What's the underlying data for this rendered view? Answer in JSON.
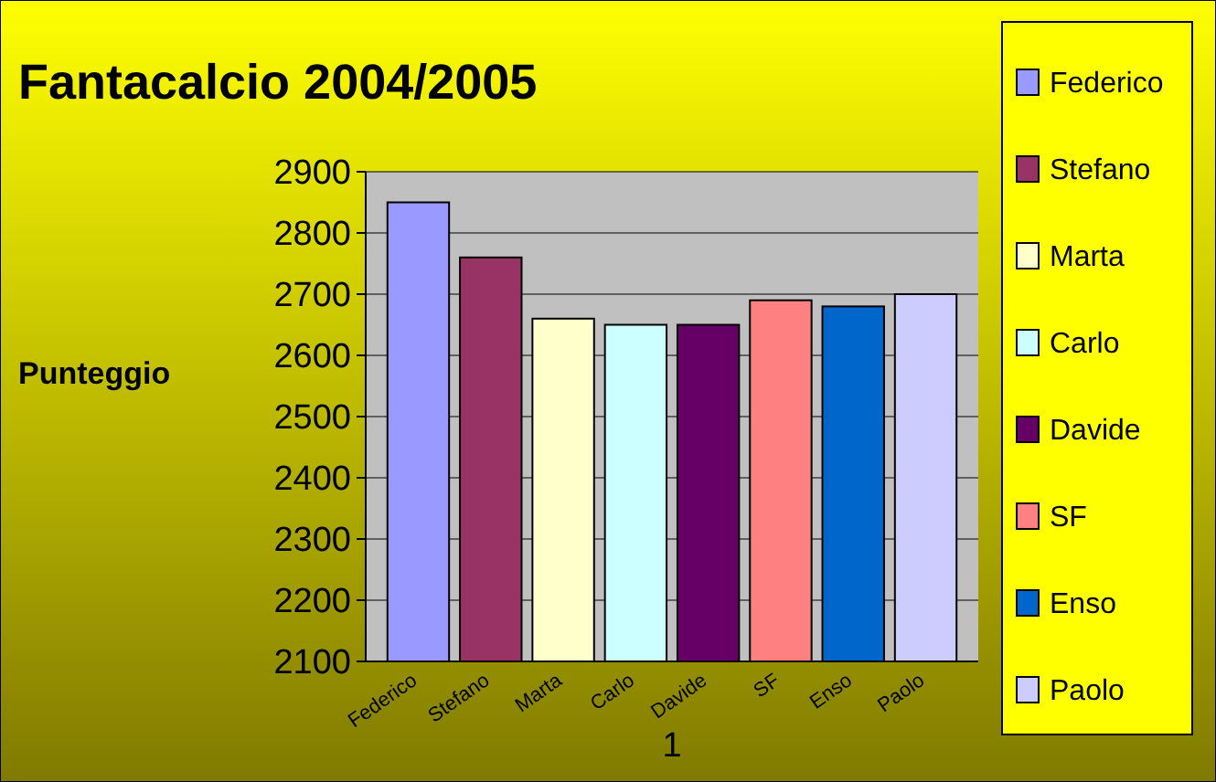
{
  "chart_data": {
    "type": "bar",
    "title": "Fantacalcio 2004/2005",
    "ylabel": "Punteggio",
    "xlabel": "1",
    "categories": [
      "Federico",
      "Stefano",
      "Marta",
      "Carlo",
      "Davide",
      "SF",
      "Enso",
      "Paolo"
    ],
    "series": [
      {
        "name": "Federico",
        "color": "#9999ff",
        "values": [
          2850,
          null,
          null,
          null,
          null,
          null,
          null,
          null
        ]
      },
      {
        "name": "Stefano",
        "color": "#993366",
        "values": [
          null,
          2760,
          null,
          null,
          null,
          null,
          null,
          null
        ]
      },
      {
        "name": "Marta",
        "color": "#ffffcc",
        "values": [
          null,
          null,
          2660,
          null,
          null,
          null,
          null,
          null
        ]
      },
      {
        "name": "Carlo",
        "color": "#ccffff",
        "values": [
          null,
          null,
          null,
          2650,
          null,
          null,
          null,
          null
        ]
      },
      {
        "name": "Davide",
        "color": "#660066",
        "values": [
          null,
          null,
          null,
          null,
          2650,
          null,
          null,
          null
        ]
      },
      {
        "name": "SF",
        "color": "#ff8080",
        "values": [
          null,
          null,
          null,
          null,
          null,
          2690,
          null,
          null
        ]
      },
      {
        "name": "Enso",
        "color": "#0066cc",
        "values": [
          null,
          null,
          null,
          null,
          null,
          null,
          2680,
          null
        ]
      },
      {
        "name": "Paolo",
        "color": "#ccccff",
        "values": [
          null,
          null,
          null,
          null,
          null,
          null,
          null,
          2700
        ]
      }
    ],
    "ylim": [
      2100,
      2900
    ],
    "yticks": [
      2100,
      2200,
      2300,
      2400,
      2500,
      2600,
      2700,
      2800,
      2900
    ],
    "grid": "y",
    "legend": "right"
  }
}
